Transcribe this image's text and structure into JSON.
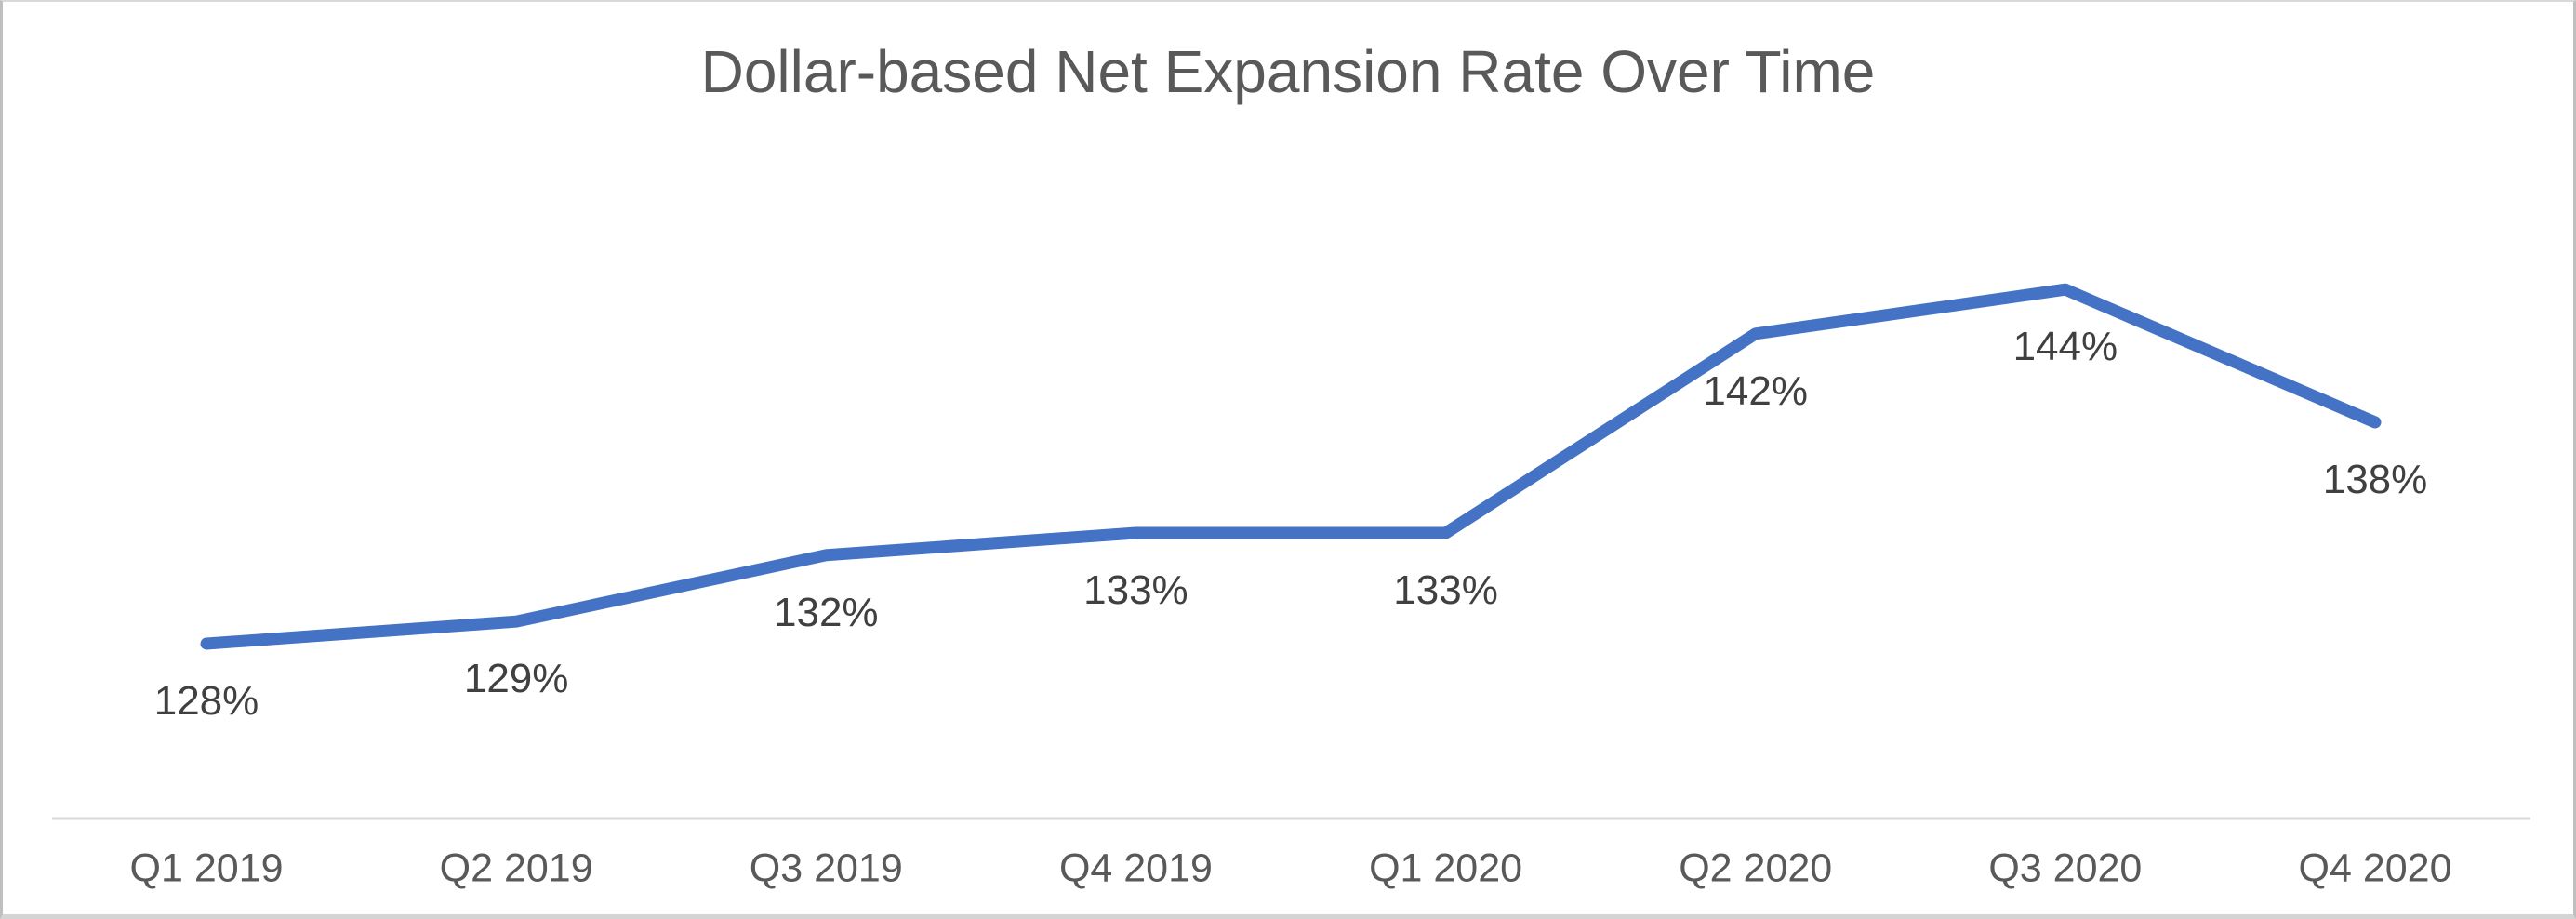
{
  "chart_data": {
    "type": "line",
    "title": "Dollar-based Net Expansion Rate Over Time",
    "categories": [
      "Q1 2019",
      "Q2 2019",
      "Q3 2019",
      "Q4 2019",
      "Q1 2020",
      "Q2 2020",
      "Q3 2020",
      "Q4 2020"
    ],
    "series": [
      {
        "name": "Dollar-based Net Expansion Rate",
        "values": [
          128,
          129,
          132,
          133,
          133,
          142,
          144,
          138
        ],
        "data_labels": [
          "128%",
          "129%",
          "132%",
          "133%",
          "133%",
          "142%",
          "144%",
          "138%"
        ],
        "line_color": "#4472C4"
      }
    ],
    "xlabel": "",
    "ylabel": "",
    "value_unit": "%",
    "data_label_position": "below",
    "grid": "off",
    "legend": "none",
    "y_axis_labels_visible": false,
    "x_axis_line_color": "#D9D9D9",
    "title_color": "#595959",
    "data_label_color": "#404040",
    "x_axis_label_color": "#595959",
    "background_color": "#FFFFFF"
  }
}
